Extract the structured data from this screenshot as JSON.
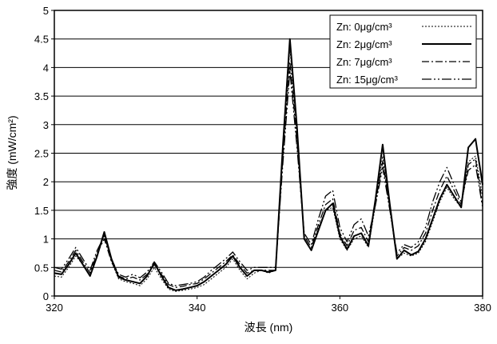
{
  "chart_data": {
    "type": "line",
    "title": "",
    "xlabel": "波長 (nm)",
    "ylabel": "強度 (mW/cm²)",
    "xlim": [
      320,
      380
    ],
    "ylim": [
      0,
      5
    ],
    "xticks": [
      320,
      340,
      360,
      380
    ],
    "yticks": [
      0,
      0.5,
      1,
      1.5,
      2,
      2.5,
      3,
      3.5,
      4,
      4.5,
      5
    ],
    "xtick_labels": [
      "320",
      "340",
      "360",
      "380"
    ],
    "ytick_labels": [
      "0",
      "0.5",
      "1",
      "1.5",
      "2",
      "2.5",
      "3",
      "3.5",
      "4",
      "4.5",
      "5"
    ],
    "grid": "horizontal",
    "legend_position": "top-right",
    "x": [
      320,
      321,
      322,
      323,
      324,
      325,
      326,
      327,
      328,
      329,
      330,
      331,
      332,
      333,
      334,
      335,
      336,
      337,
      338,
      339,
      340,
      341,
      342,
      343,
      344,
      345,
      346,
      347,
      348,
      349,
      350,
      351,
      352,
      353,
      354,
      355,
      356,
      357,
      358,
      359,
      360,
      361,
      362,
      363,
      364,
      365,
      366,
      367,
      368,
      369,
      370,
      371,
      372,
      373,
      374,
      375,
      376,
      377,
      378,
      379,
      380
    ],
    "series": [
      {
        "name": "Zn: 0μg/cm³",
        "dash": "2,2",
        "width": 1.0,
        "values": [
          0.35,
          0.33,
          0.5,
          0.7,
          0.55,
          0.35,
          0.7,
          1.08,
          0.6,
          0.3,
          0.25,
          0.22,
          0.18,
          0.3,
          0.5,
          0.3,
          0.12,
          0.08,
          0.1,
          0.12,
          0.15,
          0.2,
          0.3,
          0.4,
          0.5,
          0.65,
          0.45,
          0.3,
          0.4,
          0.45,
          0.4,
          0.45,
          2.5,
          4.35,
          2.8,
          1.0,
          0.8,
          1.2,
          1.5,
          1.55,
          1.0,
          0.8,
          1.0,
          1.05,
          0.85,
          1.6,
          2.45,
          1.5,
          0.65,
          0.75,
          0.7,
          0.75,
          0.95,
          1.3,
          1.65,
          1.9,
          1.7,
          1.55,
          2.35,
          2.45,
          1.75
        ]
      },
      {
        "name": "Zn: 2μg/cm³",
        "dash": "",
        "width": 2.0,
        "values": [
          0.4,
          0.38,
          0.55,
          0.75,
          0.55,
          0.35,
          0.7,
          1.12,
          0.65,
          0.33,
          0.28,
          0.25,
          0.22,
          0.35,
          0.58,
          0.35,
          0.15,
          0.1,
          0.12,
          0.15,
          0.18,
          0.25,
          0.35,
          0.45,
          0.55,
          0.7,
          0.5,
          0.35,
          0.45,
          0.45,
          0.42,
          0.45,
          2.6,
          4.5,
          2.95,
          1.0,
          0.8,
          1.15,
          1.5,
          1.62,
          1.05,
          0.82,
          1.05,
          1.1,
          0.88,
          1.7,
          2.65,
          1.6,
          0.65,
          0.8,
          0.72,
          0.78,
          1.0,
          1.35,
          1.7,
          1.95,
          1.75,
          1.55,
          2.6,
          2.75,
          1.95
        ]
      },
      {
        "name": "Zn: 7μg/cm³",
        "dash": "9,3,2,3",
        "width": 1.3,
        "values": [
          0.45,
          0.42,
          0.6,
          0.8,
          0.6,
          0.4,
          0.75,
          1.0,
          0.6,
          0.35,
          0.3,
          0.33,
          0.28,
          0.38,
          0.55,
          0.38,
          0.2,
          0.15,
          0.17,
          0.2,
          0.22,
          0.3,
          0.4,
          0.5,
          0.6,
          0.72,
          0.55,
          0.4,
          0.45,
          0.45,
          0.45,
          0.45,
          2.4,
          4.1,
          2.7,
          1.05,
          0.85,
          1.25,
          1.6,
          1.7,
          1.1,
          0.88,
          1.15,
          1.2,
          0.95,
          1.65,
          2.35,
          1.55,
          0.7,
          0.85,
          0.8,
          0.88,
          1.1,
          1.5,
          1.85,
          2.1,
          1.85,
          1.6,
          2.3,
          2.4,
          1.6
        ]
      },
      {
        "name": "Zn: 15μg/cm³",
        "dash": "12,3,2,3,2,3",
        "width": 1.3,
        "values": [
          0.5,
          0.47,
          0.65,
          0.85,
          0.65,
          0.45,
          0.8,
          1.05,
          0.65,
          0.38,
          0.33,
          0.38,
          0.32,
          0.42,
          0.6,
          0.42,
          0.22,
          0.18,
          0.2,
          0.22,
          0.25,
          0.33,
          0.45,
          0.55,
          0.65,
          0.77,
          0.6,
          0.45,
          0.5,
          0.5,
          0.5,
          0.5,
          2.3,
          3.95,
          2.6,
          1.1,
          0.9,
          1.35,
          1.75,
          1.85,
          1.2,
          0.95,
          1.25,
          1.35,
          1.05,
          1.6,
          2.25,
          1.5,
          0.75,
          0.9,
          0.85,
          0.95,
          1.2,
          1.65,
          2.0,
          2.25,
          1.95,
          1.65,
          2.2,
          2.3,
          1.55
        ]
      }
    ]
  }
}
